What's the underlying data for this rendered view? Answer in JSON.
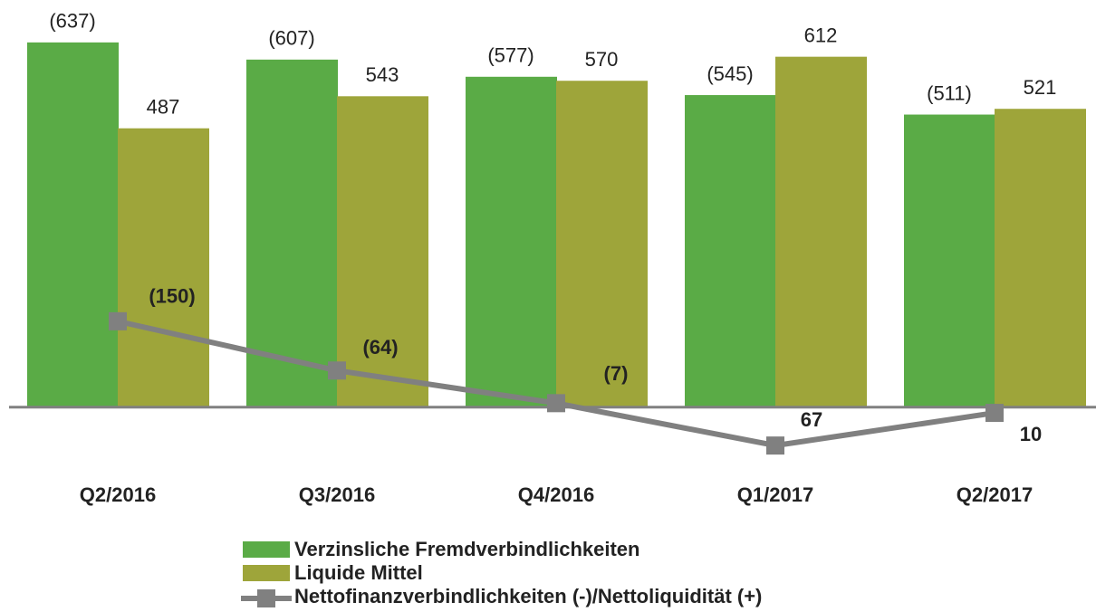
{
  "chart_data": {
    "type": "bar",
    "categories": [
      "Q2/2016",
      "Q3/2016",
      "Q4/2016",
      "Q1/2017",
      "Q2/2017"
    ],
    "series": [
      {
        "name": "Verzinsliche Fremdverbindlichkeiten",
        "color": "#5aab46",
        "values": [
          637,
          607,
          577,
          545,
          511
        ],
        "value_labels": [
          "(637)",
          "(607)",
          "(577)",
          "(545)",
          "(511)"
        ]
      },
      {
        "name": "Liquide Mittel",
        "color": "#9ea53a",
        "values": [
          487,
          543,
          570,
          612,
          521
        ]
      },
      {
        "name": "Nettofinanzverbindlichkeiten (-)/Nettoliquidität (+)",
        "type": "line",
        "axis": "y2",
        "color": "#808080",
        "values": [
          -150,
          -64,
          -7,
          67,
          10
        ],
        "value_labels": [
          "(150)",
          "(64)",
          "(7)",
          "67",
          "10"
        ]
      }
    ],
    "ylim": [
      -100,
      700
    ],
    "y2lim": [
      100,
      -700
    ],
    "grid": false
  }
}
